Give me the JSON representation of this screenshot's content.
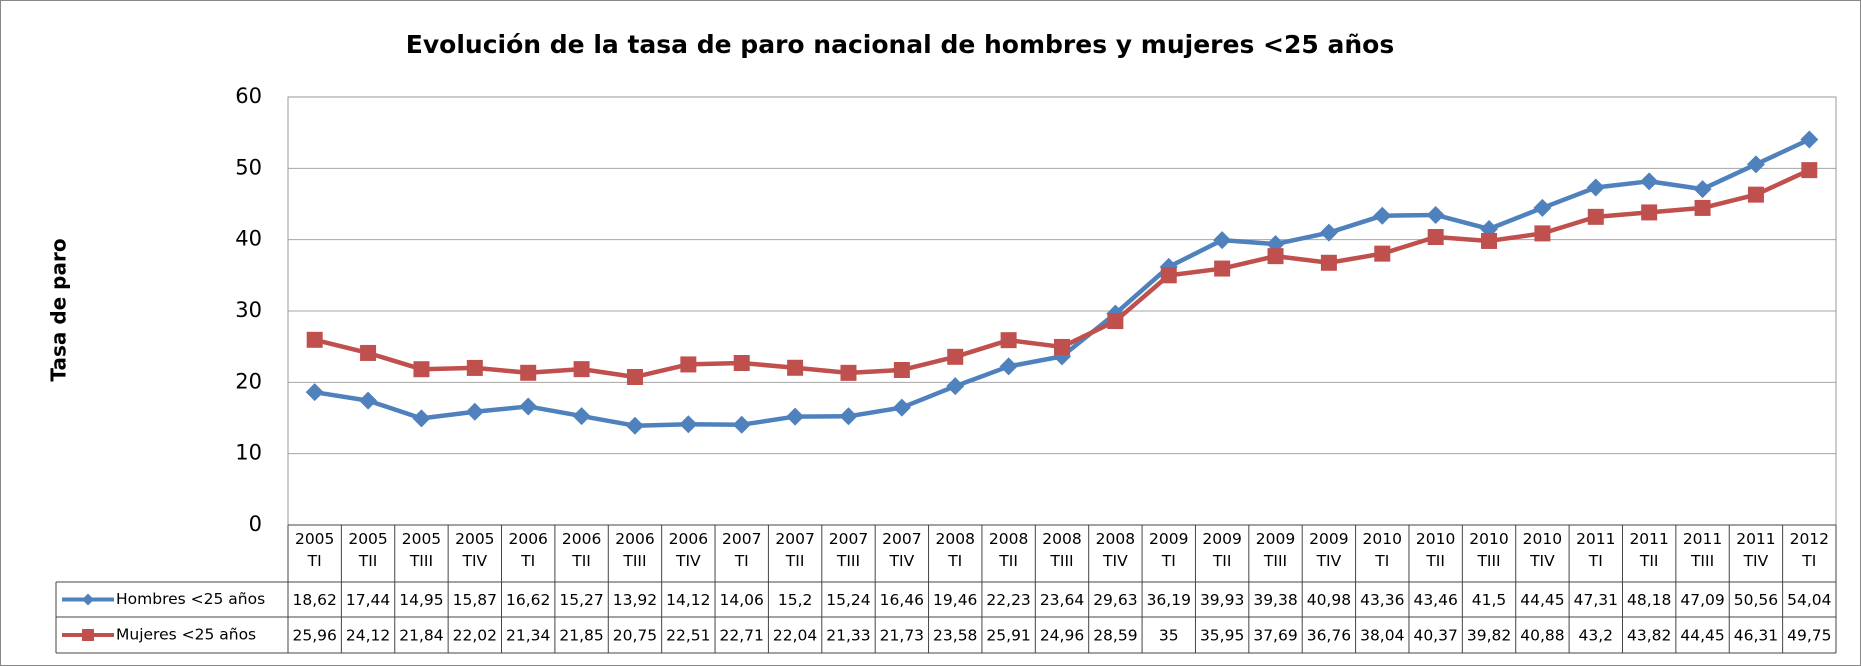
{
  "chart_data": {
    "type": "line",
    "title": "Evolución de la tasa de paro nacional de hombres y mujeres <25 años",
    "y_label": "Tasa de paro",
    "categories": [
      "2005 TI",
      "2005 TII",
      "2005 TIII",
      "2005 TIV",
      "2006 TI",
      "2006 TII",
      "2006 TIII",
      "2006 TIV",
      "2007 TI",
      "2007 TII",
      "2007 TIII",
      "2007 TIV",
      "2008 TI",
      "2008 TII",
      "2008 TIII",
      "2008 TIV",
      "2009 TI",
      "2009 TII",
      "2009 TIII",
      "2009 TIV",
      "2010 TI",
      "2010 TII",
      "2010 TIII",
      "2010 TIV",
      "2011 TI",
      "2011 TII",
      "2011 TIII",
      "2011 TIV",
      "2012 TI"
    ],
    "series": [
      {
        "name": "Hombres <25 años",
        "color": "#4f81bd",
        "marker": "diamond",
        "values": [
          18.62,
          17.44,
          14.95,
          15.87,
          16.62,
          15.27,
          13.92,
          14.12,
          14.06,
          15.2,
          15.24,
          16.46,
          19.46,
          22.23,
          23.64,
          29.63,
          36.19,
          39.93,
          39.38,
          40.98,
          43.36,
          43.46,
          41.5,
          44.45,
          47.31,
          48.18,
          47.09,
          50.56,
          54.04
        ],
        "value_labels": [
          "18,62",
          "17,44",
          "14,95",
          "15,87",
          "16,62",
          "15,27",
          "13,92",
          "14,12",
          "14,06",
          "15,2",
          "15,24",
          "16,46",
          "19,46",
          "22,23",
          "23,64",
          "29,63",
          "36,19",
          "39,93",
          "39,38",
          "40,98",
          "43,36",
          "43,46",
          "41,5",
          "44,45",
          "47,31",
          "48,18",
          "47,09",
          "50,56",
          "54,04"
        ]
      },
      {
        "name": "Mujeres <25 años",
        "color": "#c0504d",
        "marker": "square",
        "values": [
          25.96,
          24.12,
          21.84,
          22.02,
          21.34,
          21.85,
          20.75,
          22.51,
          22.71,
          22.04,
          21.33,
          21.73,
          23.58,
          25.91,
          24.96,
          28.59,
          35,
          35.95,
          37.69,
          36.76,
          38.04,
          40.37,
          39.82,
          40.88,
          43.2,
          43.82,
          44.45,
          46.31,
          49.75
        ],
        "value_labels": [
          "25,96",
          "24,12",
          "21,84",
          "22,02",
          "21,34",
          "21,85",
          "20,75",
          "22,51",
          "22,71",
          "22,04",
          "21,33",
          "21,73",
          "23,58",
          "25,91",
          "24,96",
          "28,59",
          "35",
          "35,95",
          "37,69",
          "36,76",
          "38,04",
          "40,37",
          "39,82",
          "40,88",
          "43,2",
          "43,82",
          "44,45",
          "46,31",
          "49,75"
        ]
      }
    ],
    "ylim": [
      0,
      60
    ],
    "yticks": [
      0,
      10,
      20,
      30,
      40,
      50,
      60
    ],
    "grid": true
  }
}
